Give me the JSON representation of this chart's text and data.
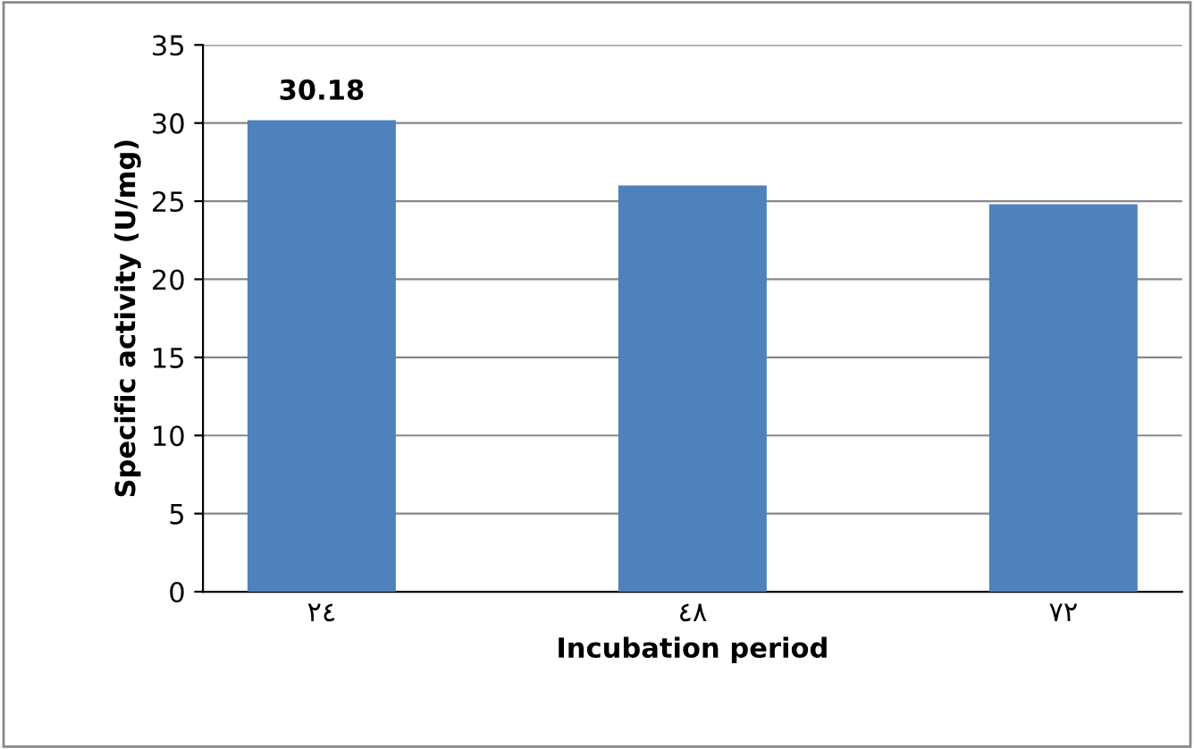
{
  "chart_data": {
    "type": "bar",
    "xlabel": "Incubation period",
    "ylabel": "Specific activity (U/mg)",
    "categories": [
      "٢٤",
      "٤٨",
      "٧٢"
    ],
    "values": [
      30.18,
      26.0,
      24.8
    ],
    "value_labels": [
      "30.18",
      null,
      null
    ],
    "color": "#4f81bd",
    "ylim": [
      0,
      35
    ],
    "yticks": [
      0,
      5,
      10,
      15,
      20,
      25,
      30,
      35
    ],
    "grid": "y",
    "legend": false
  }
}
